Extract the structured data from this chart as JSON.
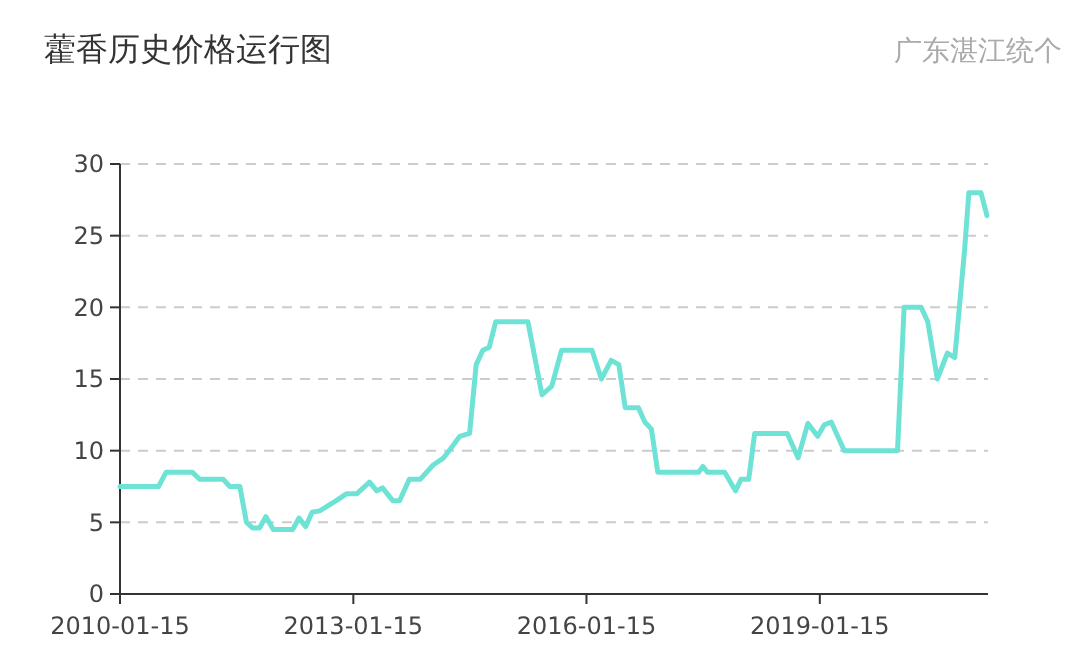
{
  "chart_data": {
    "type": "line",
    "title": "藿香历史价格运行图",
    "subtitle": "广东湛江统个",
    "x": [
      "2010-01-15",
      "2010-07-15",
      "2010-08-20",
      "2010-12-20",
      "2011-01-25",
      "2011-05-15",
      "2011-06-15",
      "2011-08-01",
      "2011-09-01",
      "2011-10-01",
      "2011-11-01",
      "2011-12-01",
      "2012-01-05",
      "2012-04-05",
      "2012-05-05",
      "2012-06-05",
      "2012-07-05",
      "2012-08-10",
      "2012-10-25",
      "2012-12-15",
      "2013-02-01",
      "2013-04-01",
      "2013-05-05",
      "2013-06-01",
      "2013-07-20",
      "2013-08-20",
      "2013-10-05",
      "2013-11-25",
      "2014-01-25",
      "2014-03-15",
      "2014-04-10",
      "2014-05-30",
      "2014-07-15",
      "2014-08-15",
      "2014-09-15",
      "2014-10-15",
      "2014-11-15",
      "2015-04-15",
      "2015-06-20",
      "2015-08-05",
      "2015-09-20",
      "2015-12-25",
      "2016-02-10",
      "2016-03-25",
      "2016-05-10",
      "2016-06-15",
      "2016-07-15",
      "2016-09-15",
      "2016-10-15",
      "2016-11-15",
      "2016-12-15",
      "2017-06-25",
      "2017-07-15",
      "2017-08-05",
      "2017-10-25",
      "2017-12-15",
      "2018-01-10",
      "2018-02-15",
      "2018-03-15",
      "2018-08-15",
      "2018-10-05",
      "2018-11-20",
      "2019-01-05",
      "2019-02-05",
      "2019-03-10",
      "2019-05-10",
      "2020-01-15",
      "2020-02-15",
      "2020-05-05",
      "2020-06-05",
      "2020-07-20",
      "2020-09-05",
      "2020-10-10",
      "2020-11-25",
      "2020-12-15",
      "2021-02-10",
      "2021-03-10"
    ],
    "series": [
      {
        "color": "#6fe2d6",
        "values": [
          7.5,
          7.5,
          8.5,
          8.5,
          8,
          8,
          7.5,
          7.5,
          5,
          4.6,
          4.6,
          5.4,
          4.5,
          4.5,
          5.3,
          4.7,
          5.7,
          5.8,
          6.5,
          7,
          7,
          7.8,
          7.2,
          7.4,
          6.5,
          6.5,
          8,
          8,
          9,
          9.5,
          10,
          11,
          11.2,
          16,
          17,
          17.2,
          19,
          19,
          13.9,
          14.5,
          17,
          17,
          17,
          15,
          16.3,
          16,
          13,
          13,
          12,
          11.5,
          8.5,
          8.5,
          8.9,
          8.5,
          8.5,
          7.2,
          8,
          8,
          11.2,
          11.2,
          9.5,
          11.9,
          11,
          11.8,
          12,
          10,
          10,
          20,
          20,
          19,
          15,
          16.8,
          16.5,
          24,
          28,
          28,
          26.4
        ]
      }
    ],
    "xlim": [
      "2010-01-15",
      "2021-03-15"
    ],
    "xticks": [
      "2010-01-15",
      "2013-01-15",
      "2016-01-15",
      "2019-01-15"
    ],
    "ylim": [
      0,
      30
    ],
    "yticks": [
      0,
      5,
      10,
      15,
      20,
      25,
      30
    ],
    "grid": "y",
    "line_style": "solid",
    "marker": "none"
  }
}
